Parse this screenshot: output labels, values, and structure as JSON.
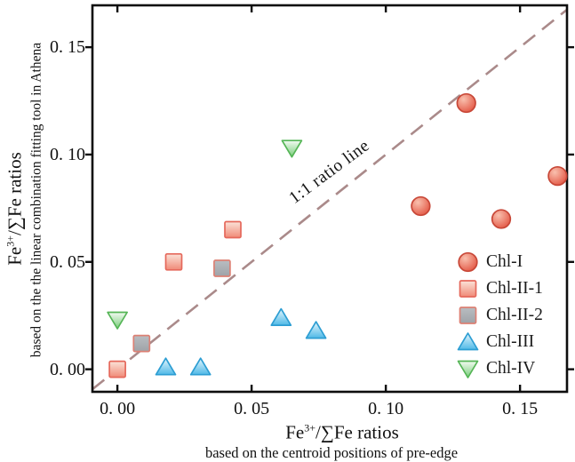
{
  "chart_data": {
    "type": "scatter",
    "title": "",
    "xlabel_parts": {
      "base": "Fe",
      "sup": "3+",
      "rest": "/∑Fe ratios"
    },
    "xlabel_subtitle": "based on the centroid positions of pre-edge",
    "ylabel_parts": {
      "base": "Fe",
      "sup": "3+",
      "rest": "/∑Fe ratios"
    },
    "ylabel_subtitle": "based on the the linear combination fitting tool in Athena",
    "annotation": "1:1 ratio line",
    "xlim": [
      -0.0093,
      0.1675
    ],
    "ylim": [
      -0.0105,
      0.1695
    ],
    "xticks": {
      "values": [
        0,
        0.05,
        0.1,
        0.15
      ],
      "labels": [
        "0. 00",
        "0. 05",
        "0. 10",
        "0. 15"
      ]
    },
    "yticks": {
      "values": [
        0,
        0.05,
        0.1,
        0.15
      ],
      "labels": [
        "0. 00",
        "0. 05",
        "0. 10",
        "0. 15"
      ]
    },
    "grid": false,
    "legend_position": "inside lower right",
    "reference_line": {
      "kind": "1:1 diagonal",
      "color": "#aa8a8a",
      "dash": [
        17,
        10
      ],
      "width": 2.6
    },
    "axis_color": "#0d0d0d",
    "series": [
      {
        "name": "Chl-I",
        "marker": "circle",
        "fill_top": "#f9c0ae",
        "fill_bottom": "#e25340",
        "stroke": "#c84737",
        "points": [
          [
            0.113,
            0.076
          ],
          [
            0.13,
            0.124
          ],
          [
            0.143,
            0.07
          ],
          [
            0.164,
            0.09
          ]
        ]
      },
      {
        "name": "Chl-II-1",
        "marker": "square",
        "fill_top": "#fbe3d9",
        "fill_bottom": "#f08a77",
        "stroke": "#e5685b",
        "points": [
          [
            0.0,
            0.0
          ],
          [
            0.021,
            0.05
          ],
          [
            0.043,
            0.065
          ]
        ]
      },
      {
        "name": "Chl-II-2",
        "marker": "square",
        "fill_top": "#b9bdc1",
        "fill_bottom": "#9fa3a8",
        "stroke": "#dc8074",
        "points": [
          [
            0.009,
            0.012
          ],
          [
            0.039,
            0.047
          ]
        ]
      },
      {
        "name": "Chl-III",
        "marker": "triangle-up",
        "fill_top": "#e6f6fd",
        "fill_bottom": "#4fb9e7",
        "stroke": "#2d9ed3",
        "points": [
          [
            0.018,
            0.001
          ],
          [
            0.031,
            0.001
          ],
          [
            0.061,
            0.024
          ],
          [
            0.074,
            0.018
          ]
        ]
      },
      {
        "name": "Chl-IV",
        "marker": "triangle-down",
        "fill_top": "#f2faf2",
        "fill_bottom": "#77cd78",
        "stroke": "#55b556",
        "points": [
          [
            0.0,
            0.023
          ],
          [
            0.065,
            0.103
          ]
        ]
      }
    ]
  }
}
